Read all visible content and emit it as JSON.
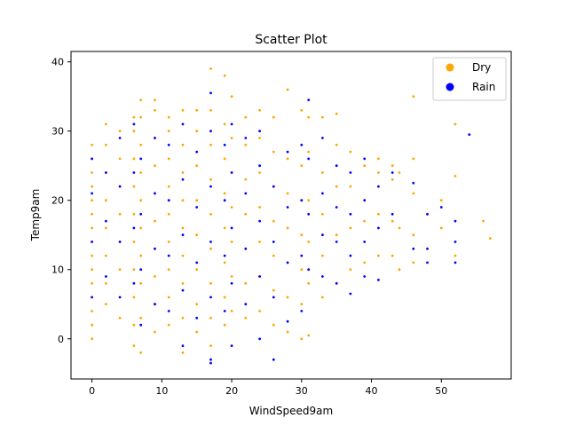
{
  "chart_data": {
    "type": "scatter",
    "title": "Scatter Plot",
    "xlabel": "WindSpeed9am",
    "ylabel": "Temp9am",
    "xlim": [
      -3,
      60
    ],
    "ylim": [
      -5.8,
      41.5
    ],
    "xticks": [
      0,
      10,
      20,
      30,
      40,
      50
    ],
    "yticks": [
      0,
      10,
      20,
      30,
      40
    ],
    "grid": false,
    "legend_position": "top-right",
    "series": [
      {
        "name": "Dry",
        "color": "#FFA500",
        "points": [
          [
            0,
            0
          ],
          [
            0,
            2
          ],
          [
            0,
            4
          ],
          [
            0,
            6
          ],
          [
            0,
            8
          ],
          [
            0,
            10
          ],
          [
            0,
            12
          ],
          [
            0,
            14
          ],
          [
            0,
            16
          ],
          [
            0,
            18
          ],
          [
            0,
            20
          ],
          [
            0,
            22
          ],
          [
            0,
            24
          ],
          [
            0,
            26
          ],
          [
            0,
            28
          ],
          [
            2,
            5
          ],
          [
            2,
            8
          ],
          [
            2,
            12
          ],
          [
            2,
            16
          ],
          [
            2,
            20
          ],
          [
            2,
            24
          ],
          [
            2,
            28
          ],
          [
            2,
            31
          ],
          [
            4,
            3
          ],
          [
            4,
            6
          ],
          [
            4,
            10
          ],
          [
            4,
            14
          ],
          [
            4,
            18
          ],
          [
            4,
            22
          ],
          [
            4,
            26
          ],
          [
            4,
            30
          ],
          [
            6,
            -1
          ],
          [
            6,
            2
          ],
          [
            6,
            6
          ],
          [
            6,
            10
          ],
          [
            6,
            14
          ],
          [
            6,
            18
          ],
          [
            6,
            22
          ],
          [
            6,
            26
          ],
          [
            6,
            30
          ],
          [
            6,
            32
          ],
          [
            7,
            -2
          ],
          [
            7,
            3
          ],
          [
            7,
            8
          ],
          [
            7,
            12
          ],
          [
            7,
            16
          ],
          [
            7,
            20
          ],
          [
            7,
            24
          ],
          [
            7,
            28
          ],
          [
            7,
            32
          ],
          [
            7,
            34.5
          ],
          [
            9,
            1
          ],
          [
            9,
            5
          ],
          [
            9,
            9
          ],
          [
            9,
            13
          ],
          [
            9,
            17
          ],
          [
            9,
            21
          ],
          [
            9,
            25
          ],
          [
            9,
            29
          ],
          [
            9,
            33
          ],
          [
            9,
            34.5
          ],
          [
            11,
            2
          ],
          [
            11,
            6
          ],
          [
            11,
            10
          ],
          [
            11,
            14
          ],
          [
            11,
            18
          ],
          [
            11,
            22
          ],
          [
            11,
            26
          ],
          [
            11,
            30
          ],
          [
            11,
            32
          ],
          [
            13,
            -2
          ],
          [
            13,
            3
          ],
          [
            13,
            8
          ],
          [
            13,
            12
          ],
          [
            13,
            16
          ],
          [
            13,
            20
          ],
          [
            13,
            24
          ],
          [
            13,
            28
          ],
          [
            13,
            33
          ],
          [
            15,
            1
          ],
          [
            15,
            5
          ],
          [
            15,
            10
          ],
          [
            15,
            15
          ],
          [
            15,
            20
          ],
          [
            15,
            25
          ],
          [
            15,
            30
          ],
          [
            15,
            33
          ],
          [
            17,
            -1
          ],
          [
            17,
            3
          ],
          [
            17,
            8
          ],
          [
            17,
            13
          ],
          [
            17,
            18
          ],
          [
            17,
            23
          ],
          [
            17,
            28
          ],
          [
            17,
            33
          ],
          [
            17,
            39
          ],
          [
            19,
            2
          ],
          [
            19,
            6
          ],
          [
            19,
            11
          ],
          [
            19,
            16
          ],
          [
            19,
            21
          ],
          [
            19,
            26
          ],
          [
            19,
            31
          ],
          [
            19,
            38
          ],
          [
            20,
            -1
          ],
          [
            20,
            4
          ],
          [
            20,
            9
          ],
          [
            20,
            14
          ],
          [
            20,
            19
          ],
          [
            20,
            24
          ],
          [
            20,
            29
          ],
          [
            20,
            35
          ],
          [
            22,
            3
          ],
          [
            22,
            8
          ],
          [
            22,
            13
          ],
          [
            22,
            18
          ],
          [
            22,
            23
          ],
          [
            22,
            28
          ],
          [
            22,
            32
          ],
          [
            24,
            4
          ],
          [
            24,
            9
          ],
          [
            24,
            14
          ],
          [
            24,
            19
          ],
          [
            24,
            24
          ],
          [
            24,
            29
          ],
          [
            24,
            33
          ],
          [
            26,
            2
          ],
          [
            26,
            7
          ],
          [
            26,
            12
          ],
          [
            26,
            17
          ],
          [
            26,
            22
          ],
          [
            26,
            27
          ],
          [
            26,
            32
          ],
          [
            28,
            1
          ],
          [
            28,
            6
          ],
          [
            28,
            11
          ],
          [
            28,
            16
          ],
          [
            28,
            21
          ],
          [
            28,
            26
          ],
          [
            28,
            36
          ],
          [
            30,
            0
          ],
          [
            30,
            5
          ],
          [
            30,
            10
          ],
          [
            30,
            15
          ],
          [
            30,
            20
          ],
          [
            30,
            25
          ],
          [
            30,
            33
          ],
          [
            31,
            0.5
          ],
          [
            31,
            8
          ],
          [
            31,
            14
          ],
          [
            31,
            20
          ],
          [
            31,
            27
          ],
          [
            31,
            32
          ],
          [
            33,
            6
          ],
          [
            33,
            12
          ],
          [
            33,
            18
          ],
          [
            33,
            24
          ],
          [
            33,
            32
          ],
          [
            35,
            8
          ],
          [
            35,
            15
          ],
          [
            35,
            22
          ],
          [
            35,
            28
          ],
          [
            35,
            32.5
          ],
          [
            37,
            10
          ],
          [
            37,
            16
          ],
          [
            37,
            22
          ],
          [
            37,
            27
          ],
          [
            39,
            11
          ],
          [
            39,
            17
          ],
          [
            39,
            25
          ],
          [
            41,
            12
          ],
          [
            41,
            18
          ],
          [
            41,
            24
          ],
          [
            41,
            26
          ],
          [
            43,
            12
          ],
          [
            43,
            17
          ],
          [
            43,
            23
          ],
          [
            43,
            25
          ],
          [
            44,
            10
          ],
          [
            44,
            16
          ],
          [
            44,
            24
          ],
          [
            46,
            11
          ],
          [
            46,
            15
          ],
          [
            46,
            21
          ],
          [
            46,
            26
          ],
          [
            46,
            35
          ],
          [
            48,
            18
          ],
          [
            50,
            16
          ],
          [
            50,
            20
          ],
          [
            52,
            12
          ],
          [
            52,
            23.5
          ],
          [
            52,
            31
          ],
          [
            56,
            17
          ],
          [
            57,
            14.5
          ]
        ]
      },
      {
        "name": "Rain",
        "color": "#0000FF",
        "points": [
          [
            0,
            6
          ],
          [
            0,
            14
          ],
          [
            0,
            21
          ],
          [
            0,
            26
          ],
          [
            2,
            9
          ],
          [
            2,
            17
          ],
          [
            2,
            24
          ],
          [
            4,
            6
          ],
          [
            4,
            14
          ],
          [
            4,
            22
          ],
          [
            4,
            29
          ],
          [
            6,
            8
          ],
          [
            6,
            16
          ],
          [
            6,
            24
          ],
          [
            6,
            31
          ],
          [
            7,
            2
          ],
          [
            7,
            10
          ],
          [
            7,
            18
          ],
          [
            7,
            26
          ],
          [
            9,
            5
          ],
          [
            9,
            13
          ],
          [
            9,
            21
          ],
          [
            9,
            29
          ],
          [
            11,
            4
          ],
          [
            11,
            12
          ],
          [
            11,
            20
          ],
          [
            11,
            28
          ],
          [
            13,
            -1
          ],
          [
            13,
            7
          ],
          [
            13,
            15
          ],
          [
            13,
            23
          ],
          [
            13,
            31
          ],
          [
            15,
            3
          ],
          [
            15,
            11
          ],
          [
            15,
            19
          ],
          [
            15,
            27
          ],
          [
            17,
            -3.5
          ],
          [
            17,
            -3
          ],
          [
            17,
            6
          ],
          [
            17,
            14
          ],
          [
            17,
            22
          ],
          [
            17,
            30
          ],
          [
            17,
            35.5
          ],
          [
            19,
            4
          ],
          [
            19,
            12
          ],
          [
            19,
            20
          ],
          [
            19,
            28
          ],
          [
            20,
            -1
          ],
          [
            20,
            8
          ],
          [
            20,
            16
          ],
          [
            20,
            24
          ],
          [
            20,
            31
          ],
          [
            22,
            5
          ],
          [
            22,
            13
          ],
          [
            22,
            21
          ],
          [
            22,
            29
          ],
          [
            24,
            0
          ],
          [
            24,
            9
          ],
          [
            24,
            17
          ],
          [
            24,
            25
          ],
          [
            24,
            30
          ],
          [
            26,
            -3
          ],
          [
            26,
            6
          ],
          [
            26,
            14
          ],
          [
            26,
            22
          ],
          [
            28,
            2.5
          ],
          [
            28,
            11
          ],
          [
            28,
            19
          ],
          [
            28,
            27
          ],
          [
            30,
            4
          ],
          [
            30,
            12
          ],
          [
            30,
            20
          ],
          [
            30,
            28
          ],
          [
            31,
            10
          ],
          [
            31,
            18
          ],
          [
            31,
            26
          ],
          [
            31,
            34.5
          ],
          [
            33,
            9
          ],
          [
            33,
            15
          ],
          [
            33,
            21
          ],
          [
            33,
            29
          ],
          [
            35,
            8
          ],
          [
            35,
            14
          ],
          [
            35,
            19
          ],
          [
            35,
            25
          ],
          [
            37,
            6.5
          ],
          [
            37,
            12
          ],
          [
            37,
            18
          ],
          [
            37,
            24
          ],
          [
            39,
            9
          ],
          [
            39,
            14
          ],
          [
            39,
            20
          ],
          [
            39,
            26
          ],
          [
            41,
            8.5
          ],
          [
            41,
            16
          ],
          [
            41,
            22
          ],
          [
            43,
            18
          ],
          [
            43,
            24
          ],
          [
            46,
            13
          ],
          [
            46,
            22.5
          ],
          [
            48,
            11
          ],
          [
            48,
            13
          ],
          [
            48,
            18
          ],
          [
            50,
            19
          ],
          [
            52,
            11
          ],
          [
            52,
            14
          ],
          [
            52,
            17
          ],
          [
            54,
            29.5
          ]
        ]
      }
    ]
  }
}
